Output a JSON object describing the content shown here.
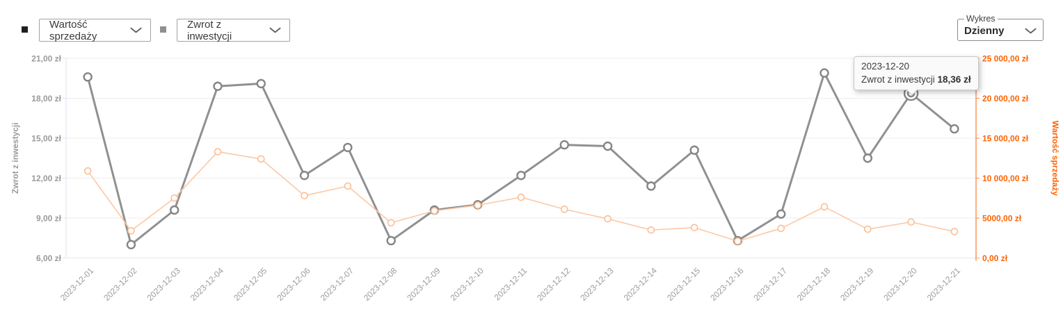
{
  "controls": {
    "series_selects": [
      {
        "swatch_color": "#1f1f1f",
        "label": "Wartość sprzedaży"
      },
      {
        "swatch_color": "#8f8f8f",
        "label": "Zwrot z inwestycji"
      }
    ],
    "chart_type": {
      "group_label": "Wykres",
      "value": "Dzienny"
    }
  },
  "tooltip": {
    "date": "2023-12-20",
    "series_label": "Zwrot z inwestycji",
    "value": "18,36 zł"
  },
  "chart_data": {
    "type": "line",
    "categories": [
      "2023-12-01",
      "2023-12-02",
      "2023-12-03",
      "2023-12-04",
      "2023-12-05",
      "2023-12-06",
      "2023-12-07",
      "2023-12-08",
      "2023-12-09",
      "2023-12-10",
      "2023-12-11",
      "2023-12-12",
      "2023-12-13",
      "2023-12-14",
      "2023-12-15",
      "2023-12-16",
      "2023-12-17",
      "2023-12-18",
      "2023-12-19",
      "2023-12-20",
      "2023-12-21"
    ],
    "series": [
      {
        "name": "Zwrot z inwestycji",
        "axis": "left",
        "unit": "zł",
        "line_color": "#909090",
        "point_color": "#858585",
        "line_width": 3,
        "point_radius": 5.5,
        "point_stroke_width": 2.4,
        "values": [
          19.6,
          7.0,
          9.6,
          18.9,
          19.1,
          12.2,
          14.3,
          7.3,
          9.6,
          10.0,
          12.2,
          14.5,
          14.4,
          11.4,
          14.1,
          7.3,
          9.3,
          19.9,
          13.5,
          18.36,
          15.7
        ]
      },
      {
        "name": "Wartość sprzedaży",
        "axis": "right",
        "unit": "zł",
        "line_color": "#fcc8a4",
        "point_color": "#fbbd93",
        "line_width": 1.6,
        "point_radius": 4.5,
        "point_stroke_width": 1.6,
        "values": [
          10900,
          3400,
          7500,
          13300,
          12400,
          7800,
          9000,
          4400,
          5900,
          6600,
          7600,
          6100,
          4900,
          3500,
          3800,
          2100,
          3700,
          6400,
          3600,
          4500,
          3300
        ]
      }
    ],
    "left_axis": {
      "name": "Zwrot z inwestycji",
      "min": 6,
      "max": 21,
      "tick_step": 3,
      "tick_labels_top_to_bottom": [
        "21,00 zł",
        "18,00 zł",
        "15,00 zł",
        "12,00 zł",
        "9,00 zł",
        "6,00 zł"
      ],
      "label_color": "#9a9a9a"
    },
    "right_axis": {
      "name": "Wartość sprzedaży",
      "min": 0,
      "max": 25000,
      "tick_step": 5000,
      "tick_labels_top_to_bottom": [
        "25 000,00 zł",
        "20 000,00 zł",
        "15 000,00 zł",
        "10 000,00 zł",
        "5000,00 zł",
        "0,00 zł"
      ],
      "label_color": "#ff6200",
      "axis_line_color": "#fb9a66"
    },
    "x_axis": {
      "label_color": "#9b9b9b",
      "label_rotation": 45,
      "axis_line_color": "#e0e6f1"
    },
    "grid_color": "#ededed",
    "grid": true,
    "legend_position": "top",
    "highlight": {
      "series_index": 0,
      "point_index": 19
    }
  }
}
